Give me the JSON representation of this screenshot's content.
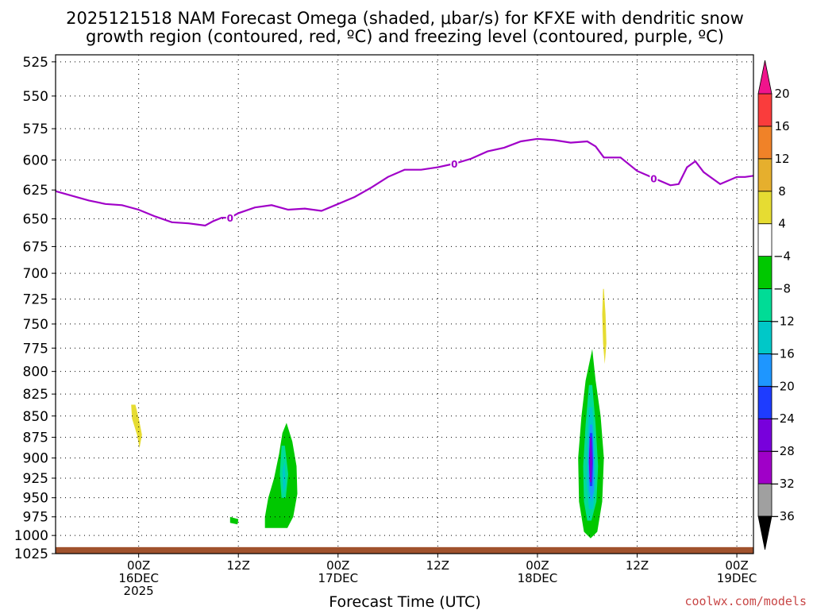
{
  "title_line1": "2025121518 NAM Forecast Omega (shaded, μbar/s) for KFXE with dendritic snow",
  "title_line2": "growth region (contoured, red, ºC) and freezing level (contoured, purple, ºC)",
  "credit": "coolwx.com/models",
  "colors": {
    "freezing": "#a000c8",
    "ground": "#a0522d",
    "credit": "#c84646"
  },
  "chart_data": {
    "type": "contour",
    "xlabel": "Forecast Time (UTC)",
    "x_unit": "forecast hours",
    "xlim": [
      -4,
      80
    ],
    "y_unit": "hPa",
    "ylim": [
      1025,
      520
    ],
    "yticks": [
      525,
      550,
      575,
      600,
      625,
      650,
      675,
      700,
      725,
      750,
      775,
      800,
      825,
      850,
      875,
      900,
      925,
      950,
      975,
      1000,
      1025
    ],
    "xticks": [
      {
        "hour": 6,
        "lines": [
          "00Z",
          "16DEC",
          "2025"
        ]
      },
      {
        "hour": 18,
        "lines": [
          "12Z"
        ]
      },
      {
        "hour": 30,
        "lines": [
          "00Z",
          "17DEC"
        ]
      },
      {
        "hour": 42,
        "lines": [
          "12Z"
        ]
      },
      {
        "hour": 54,
        "lines": [
          "00Z",
          "18DEC"
        ]
      },
      {
        "hour": 66,
        "lines": [
          "12Z"
        ]
      },
      {
        "hour": 78,
        "lines": [
          "00Z",
          "19DEC"
        ]
      }
    ],
    "freezing_level": {
      "label": "0",
      "label_hours": [
        17,
        44,
        68
      ],
      "hours": [
        -4,
        -2,
        0,
        2,
        4,
        6,
        8,
        10,
        12,
        14,
        15,
        16,
        17,
        18,
        20,
        22,
        24,
        26,
        28,
        30,
        32,
        34,
        36,
        38,
        40,
        42,
        44,
        46,
        48,
        50,
        52,
        54,
        56,
        58,
        60,
        61,
        62,
        64,
        66,
        68,
        70,
        71,
        72,
        73,
        74,
        76,
        78,
        79,
        80
      ],
      "pressure": [
        626,
        630,
        634,
        637,
        638,
        642,
        648,
        653,
        654,
        656,
        652,
        649,
        649,
        645,
        640,
        638,
        642,
        641,
        643,
        637,
        631,
        623,
        614,
        608,
        608,
        606,
        603,
        599,
        593,
        590,
        585,
        583,
        584,
        586,
        585,
        589,
        598,
        598,
        609,
        615,
        621,
        620,
        606,
        601,
        610,
        620,
        614,
        614,
        613
      ]
    },
    "omega_regions": [
      {
        "level": 4,
        "color": "#e6dc32",
        "polygons": [
          [
            [
              5.6,
              837
            ],
            [
              6.0,
              852
            ],
            [
              6.4,
              872
            ],
            [
              6.1,
              888
            ],
            [
              5.8,
              872
            ],
            [
              5.2,
              853
            ],
            [
              5.1,
              837
            ]
          ],
          [
            [
              62.0,
              715
            ],
            [
              62.2,
              740
            ],
            [
              62.3,
              770
            ],
            [
              62.1,
              792
            ],
            [
              61.9,
              770
            ],
            [
              61.8,
              740
            ],
            [
              61.9,
              715
            ]
          ]
        ]
      },
      {
        "level": -4,
        "color": "#00c800",
        "polygons": [
          [
            [
              23.8,
              858
            ],
            [
              24.5,
              880
            ],
            [
              25.0,
              910
            ],
            [
              25.1,
              945
            ],
            [
              24.6,
              975
            ],
            [
              23.9,
              990
            ],
            [
              21.2,
              990
            ],
            [
              21.2,
              975
            ],
            [
              21.6,
              950
            ],
            [
              22.3,
              925
            ],
            [
              22.9,
              895
            ],
            [
              23.3,
              870
            ]
          ],
          [
            [
              17.0,
              975
            ],
            [
              18.0,
              978
            ],
            [
              17.9,
              985
            ],
            [
              17.0,
              983
            ]
          ],
          [
            [
              60.6,
              776
            ],
            [
              61.0,
              810
            ],
            [
              61.6,
              850
            ],
            [
              62.0,
              900
            ],
            [
              61.8,
              955
            ],
            [
              61.2,
              995
            ],
            [
              60.4,
              1004
            ],
            [
              59.6,
              995
            ],
            [
              59.0,
              955
            ],
            [
              58.9,
              900
            ],
            [
              59.3,
              850
            ],
            [
              59.8,
              810
            ]
          ]
        ]
      },
      {
        "level": -8,
        "color": "#00dc96",
        "polygons": [
          [
            [
              23.6,
              885
            ],
            [
              24.0,
              920
            ],
            [
              23.7,
              950
            ],
            [
              23.2,
              950
            ],
            [
              23.0,
              920
            ],
            [
              23.2,
              885
            ]
          ],
          [
            [
              60.6,
              815
            ],
            [
              61.0,
              860
            ],
            [
              61.3,
              910
            ],
            [
              61.1,
              955
            ],
            [
              60.5,
              980
            ],
            [
              60.0,
              980
            ],
            [
              59.6,
              955
            ],
            [
              59.5,
              910
            ],
            [
              59.8,
              860
            ],
            [
              60.2,
              815
            ]
          ]
        ]
      },
      {
        "level": -12,
        "color": "#00c8c8",
        "polygons": [
          [
            [
              23.6,
              905
            ],
            [
              23.7,
              935
            ],
            [
              23.4,
              945
            ],
            [
              23.3,
              915
            ]
          ],
          [
            [
              60.6,
              840
            ],
            [
              60.9,
              880
            ],
            [
              61.0,
              930
            ],
            [
              60.7,
              965
            ],
            [
              60.2,
              965
            ],
            [
              59.9,
              930
            ],
            [
              60.0,
              880
            ],
            [
              60.2,
              840
            ]
          ]
        ]
      },
      {
        "level": -16,
        "color": "#1e96ff",
        "polygons": [
          [
            [
              60.6,
              860
            ],
            [
              60.8,
              900
            ],
            [
              60.8,
              940
            ],
            [
              60.5,
              955
            ],
            [
              60.2,
              940
            ],
            [
              60.1,
              900
            ],
            [
              60.3,
              860
            ]
          ]
        ]
      },
      {
        "level": -20,
        "color": "#1e3cff",
        "polygons": [
          [
            [
              60.6,
              870
            ],
            [
              60.7,
              905
            ],
            [
              60.6,
              935
            ],
            [
              60.3,
              935
            ],
            [
              60.2,
              905
            ],
            [
              60.3,
              870
            ]
          ]
        ]
      },
      {
        "level": -24,
        "color": "#7800dc",
        "polygons": [
          [
            [
              60.5,
              875
            ],
            [
              60.6,
              905
            ],
            [
              60.5,
              930
            ],
            [
              60.3,
              930
            ],
            [
              60.2,
              905
            ],
            [
              60.3,
              875
            ]
          ]
        ]
      }
    ],
    "colorbar": {
      "levels": [
        -36,
        -32,
        -28,
        -24,
        -20,
        -16,
        -12,
        -8,
        -4,
        4,
        8,
        12,
        16,
        20
      ],
      "colors": [
        "#a0a0a0",
        "#a000c8",
        "#7800dc",
        "#1e3cff",
        "#1e96ff",
        "#00c8c8",
        "#00dc96",
        "#00c800",
        "#ffffff",
        "#e6dc32",
        "#e6af2d",
        "#f08228",
        "#fa3c3c"
      ],
      "under_color": "#000000",
      "over_color": "#f0148c"
    }
  }
}
